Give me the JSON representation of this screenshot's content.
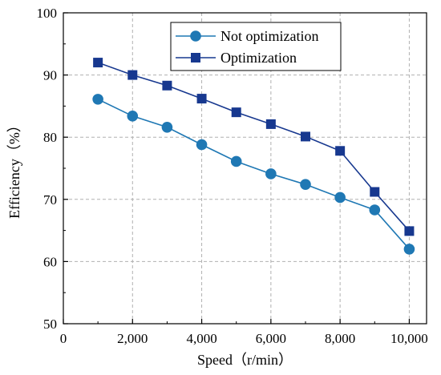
{
  "chart_data": {
    "type": "line",
    "xlabel": "Speed（r/min）",
    "ylabel": "Efficiency（%）",
    "xlim": [
      0,
      10500
    ],
    "ylim": [
      50,
      100
    ],
    "xticks": [
      0,
      2000,
      4000,
      6000,
      8000,
      10000
    ],
    "xtick_labels": [
      "0",
      "2,000",
      "4,000",
      "6,000",
      "8,000",
      "10,000"
    ],
    "yticks": [
      50,
      60,
      70,
      80,
      90,
      100
    ],
    "ytick_labels": [
      "50",
      "60",
      "70",
      "80",
      "90",
      "100"
    ],
    "grid": true,
    "legend_position": "top-center",
    "x": [
      1000,
      2000,
      3000,
      4000,
      5000,
      6000,
      7000,
      8000,
      9000,
      10000
    ],
    "series": [
      {
        "name": "Not optimization",
        "marker": "circle",
        "color": "#1f78b4",
        "values": [
          86.1,
          83.4,
          81.6,
          78.8,
          76.1,
          74.1,
          72.4,
          70.3,
          68.3,
          62.0
        ]
      },
      {
        "name": "Optimization",
        "marker": "square",
        "color": "#17388f",
        "values": [
          92.0,
          90.0,
          88.3,
          86.2,
          84.0,
          82.1,
          80.1,
          77.8,
          71.2,
          64.9
        ]
      }
    ]
  }
}
